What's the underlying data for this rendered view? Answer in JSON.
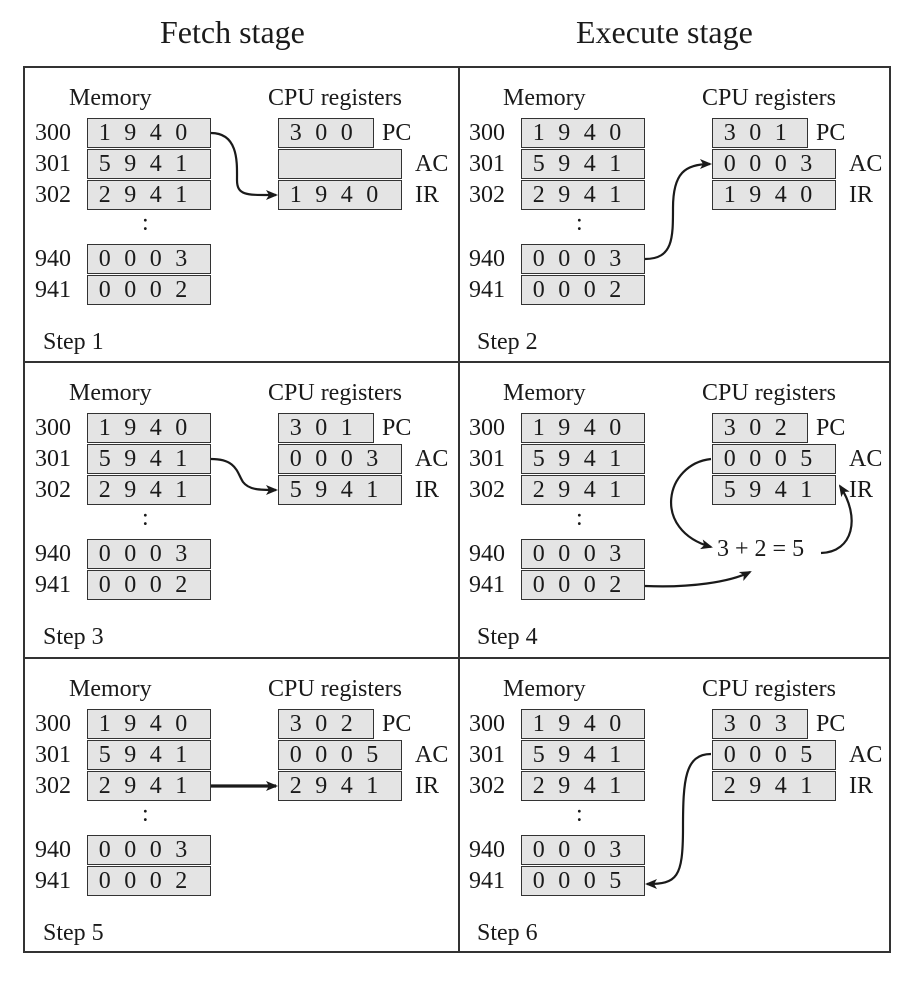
{
  "headers": {
    "fetch": "Fetch stage",
    "execute": "Execute stage"
  },
  "labels": {
    "memory": "Memory",
    "cpu": "CPU registers",
    "pc": "PC",
    "ac": "AC",
    "ir": "IR",
    "dots": ":"
  },
  "steps": [
    {
      "step": "Step 1",
      "memory": [
        {
          "addr": "300",
          "digits": [
            "1",
            "9",
            "4",
            "0"
          ]
        },
        {
          "addr": "301",
          "digits": [
            "5",
            "9",
            "4",
            "1"
          ]
        },
        {
          "addr": "302",
          "digits": [
            "2",
            "9",
            "4",
            "1"
          ]
        },
        {
          "addr": "940",
          "digits": [
            "0",
            "0",
            "0",
            "3"
          ]
        },
        {
          "addr": "941",
          "digits": [
            "0",
            "0",
            "0",
            "2"
          ]
        }
      ],
      "registers": {
        "pc": [
          "3",
          "0",
          "0"
        ],
        "ac": [
          "",
          "",
          "",
          ""
        ],
        "ir": [
          "1",
          "9",
          "4",
          "0"
        ]
      },
      "arrow": "memory 300 to IR"
    },
    {
      "step": "Step 2",
      "memory": [
        {
          "addr": "300",
          "digits": [
            "1",
            "9",
            "4",
            "0"
          ]
        },
        {
          "addr": "301",
          "digits": [
            "5",
            "9",
            "4",
            "1"
          ]
        },
        {
          "addr": "302",
          "digits": [
            "2",
            "9",
            "4",
            "1"
          ]
        },
        {
          "addr": "940",
          "digits": [
            "0",
            "0",
            "0",
            "3"
          ]
        },
        {
          "addr": "941",
          "digits": [
            "0",
            "0",
            "0",
            "2"
          ]
        }
      ],
      "registers": {
        "pc": [
          "3",
          "0",
          "1"
        ],
        "ac": [
          "0",
          "0",
          "0",
          "3"
        ],
        "ir": [
          "1",
          "9",
          "4",
          "0"
        ]
      },
      "arrow": "memory 940 to AC"
    },
    {
      "step": "Step 3",
      "memory": [
        {
          "addr": "300",
          "digits": [
            "1",
            "9",
            "4",
            "0"
          ]
        },
        {
          "addr": "301",
          "digits": [
            "5",
            "9",
            "4",
            "1"
          ]
        },
        {
          "addr": "302",
          "digits": [
            "2",
            "9",
            "4",
            "1"
          ]
        },
        {
          "addr": "940",
          "digits": [
            "0",
            "0",
            "0",
            "3"
          ]
        },
        {
          "addr": "941",
          "digits": [
            "0",
            "0",
            "0",
            "2"
          ]
        }
      ],
      "registers": {
        "pc": [
          "3",
          "0",
          "1"
        ],
        "ac": [
          "0",
          "0",
          "0",
          "3"
        ],
        "ir": [
          "5",
          "9",
          "4",
          "1"
        ]
      },
      "arrow": "memory 301 to IR"
    },
    {
      "step": "Step 4",
      "memory": [
        {
          "addr": "300",
          "digits": [
            "1",
            "9",
            "4",
            "0"
          ]
        },
        {
          "addr": "301",
          "digits": [
            "5",
            "9",
            "4",
            "1"
          ]
        },
        {
          "addr": "302",
          "digits": [
            "2",
            "9",
            "4",
            "1"
          ]
        },
        {
          "addr": "940",
          "digits": [
            "0",
            "0",
            "0",
            "3"
          ]
        },
        {
          "addr": "941",
          "digits": [
            "0",
            "0",
            "0",
            "2"
          ]
        }
      ],
      "registers": {
        "pc": [
          "3",
          "0",
          "2"
        ],
        "ac": [
          "0",
          "0",
          "0",
          "5"
        ],
        "ir": [
          "5",
          "9",
          "4",
          "1"
        ]
      },
      "expression": "3 + 2 = 5",
      "arrow": "AC and memory 941 to sum, sum to AC"
    },
    {
      "step": "Step 5",
      "memory": [
        {
          "addr": "300",
          "digits": [
            "1",
            "9",
            "4",
            "0"
          ]
        },
        {
          "addr": "301",
          "digits": [
            "5",
            "9",
            "4",
            "1"
          ]
        },
        {
          "addr": "302",
          "digits": [
            "2",
            "9",
            "4",
            "1"
          ]
        },
        {
          "addr": "940",
          "digits": [
            "0",
            "0",
            "0",
            "3"
          ]
        },
        {
          "addr": "941",
          "digits": [
            "0",
            "0",
            "0",
            "2"
          ]
        }
      ],
      "registers": {
        "pc": [
          "3",
          "0",
          "2"
        ],
        "ac": [
          "0",
          "0",
          "0",
          "5"
        ],
        "ir": [
          "2",
          "9",
          "4",
          "1"
        ]
      },
      "arrow": "memory 302 to IR"
    },
    {
      "step": "Step 6",
      "memory": [
        {
          "addr": "300",
          "digits": [
            "1",
            "9",
            "4",
            "0"
          ]
        },
        {
          "addr": "301",
          "digits": [
            "5",
            "9",
            "4",
            "1"
          ]
        },
        {
          "addr": "302",
          "digits": [
            "2",
            "9",
            "4",
            "1"
          ]
        },
        {
          "addr": "940",
          "digits": [
            "0",
            "0",
            "0",
            "3"
          ]
        },
        {
          "addr": "941",
          "digits": [
            "0",
            "0",
            "0",
            "5"
          ]
        }
      ],
      "registers": {
        "pc": [
          "3",
          "0",
          "3"
        ],
        "ac": [
          "0",
          "0",
          "0",
          "5"
        ],
        "ir": [
          "2",
          "9",
          "4",
          "1"
        ]
      },
      "arrow": "AC to memory 941"
    }
  ]
}
